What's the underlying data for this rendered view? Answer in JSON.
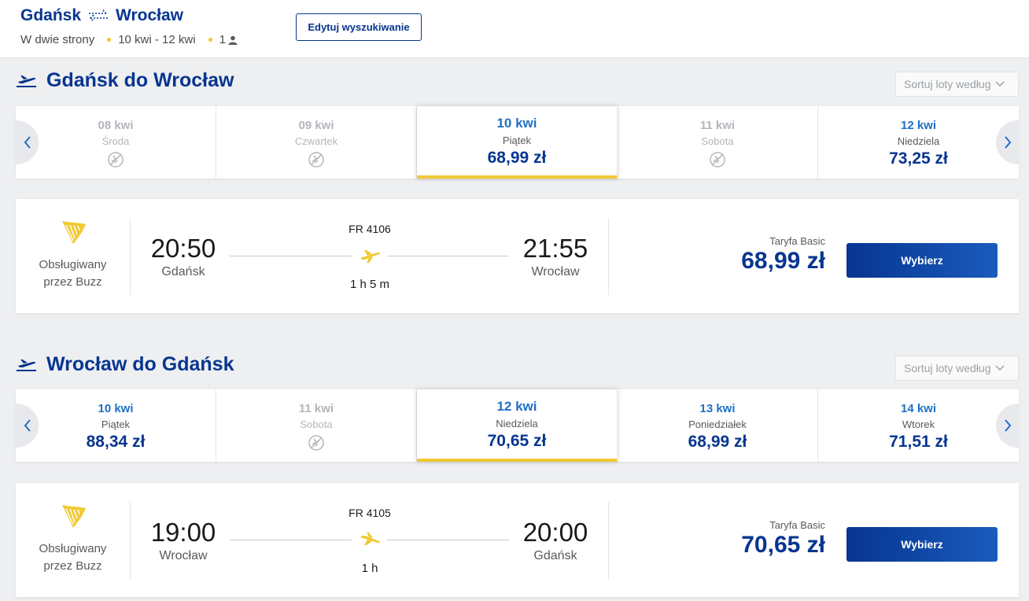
{
  "header": {
    "origin": "Gdańsk",
    "destination": "Wrocław",
    "trip_type": "W dwie strony",
    "dates": "10 kwi - 12 kwi",
    "passengers": "1",
    "edit_label": "Edytuj wyszukiwanie"
  },
  "colors": {
    "brand": "#073590",
    "accent": "#f1c933",
    "link": "#1f6fc5"
  },
  "sections": [
    {
      "title": "Gdańsk do Wrocław",
      "sort_label": "Sortuj loty według",
      "days": [
        {
          "date": "08 kwi",
          "weekday": "Środa",
          "price": null,
          "available": false
        },
        {
          "date": "09 kwi",
          "weekday": "Czwartek",
          "price": null,
          "available": false
        },
        {
          "date": "10 kwi",
          "weekday": "Piątek",
          "price": "68,99 zł",
          "available": true,
          "selected": true
        },
        {
          "date": "11 kwi",
          "weekday": "Sobota",
          "price": null,
          "available": false
        },
        {
          "date": "12 kwi",
          "weekday": "Niedziela",
          "price": "73,25 zł",
          "available": true
        }
      ],
      "flight": {
        "operator_line1": "Obsługiwany",
        "operator_line2": "przez Buzz",
        "dep_time": "20:50",
        "dep_city": "Gdańsk",
        "flight_no": "FR 4106",
        "duration": "1 h 5 m",
        "arr_time": "21:55",
        "arr_city": "Wrocław",
        "fare_name": "Taryfa Basic",
        "price": "68,99 zł",
        "select_label": "Wybierz"
      }
    },
    {
      "title": "Wrocław do Gdańsk",
      "sort_label": "Sortuj loty według",
      "days": [
        {
          "date": "10 kwi",
          "weekday": "Piątek",
          "price": "88,34 zł",
          "available": true
        },
        {
          "date": "11 kwi",
          "weekday": "Sobota",
          "price": null,
          "available": false
        },
        {
          "date": "12 kwi",
          "weekday": "Niedziela",
          "price": "70,65 zł",
          "available": true,
          "selected": true
        },
        {
          "date": "13 kwi",
          "weekday": "Poniedziałek",
          "price": "68,99 zł",
          "available": true
        },
        {
          "date": "14 kwi",
          "weekday": "Wtorek",
          "price": "71,51 zł",
          "available": true
        }
      ],
      "flight": {
        "operator_line1": "Obsługiwany",
        "operator_line2": "przez Buzz",
        "dep_time": "19:00",
        "dep_city": "Wrocław",
        "flight_no": "FR 4105",
        "duration": "1 h",
        "arr_time": "20:00",
        "arr_city": "Gdańsk",
        "fare_name": "Taryfa Basic",
        "price": "70,65 zł",
        "select_label": "Wybierz"
      }
    }
  ]
}
